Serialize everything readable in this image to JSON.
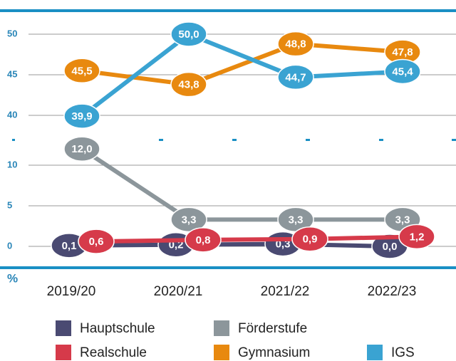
{
  "chart_data": {
    "type": "line",
    "y_label": "%",
    "categories": [
      "2019/20",
      "2020/21",
      "2021/22",
      "2022/23"
    ],
    "ylim": [
      0,
      50
    ],
    "ybreak": [
      13,
      37
    ],
    "yticks": [
      0,
      5,
      10,
      40,
      45,
      50
    ],
    "grid": true,
    "series": [
      {
        "name": "Hauptschule",
        "color": "#4a4a72",
        "values": [
          0.1,
          0.2,
          0.3,
          0.0
        ],
        "value_labels": [
          "0,1",
          "0,2",
          "0,3",
          "0,0"
        ]
      },
      {
        "name": "Förderstufe",
        "color": "#8c969b",
        "values": [
          12.0,
          3.3,
          3.3,
          3.3
        ],
        "value_labels": [
          "12,0",
          "3,3",
          "3,3",
          "3,3"
        ]
      },
      {
        "name": "Realschule",
        "color": "#d63a4a",
        "values": [
          0.6,
          0.8,
          0.9,
          1.2
        ],
        "value_labels": [
          "0,6",
          "0,8",
          "0,9",
          "1,2"
        ]
      },
      {
        "name": "Gymnasium",
        "color": "#e8890f",
        "values": [
          45.5,
          43.8,
          48.8,
          47.8
        ],
        "value_labels": [
          "45,5",
          "43,8",
          "48,8",
          "47,8"
        ]
      },
      {
        "name": "IGS",
        "color": "#3aa3d2",
        "values": [
          39.9,
          50.0,
          44.7,
          45.4
        ],
        "value_labels": [
          "39,9",
          "50,0",
          "44,7",
          "45,4"
        ]
      }
    ]
  }
}
